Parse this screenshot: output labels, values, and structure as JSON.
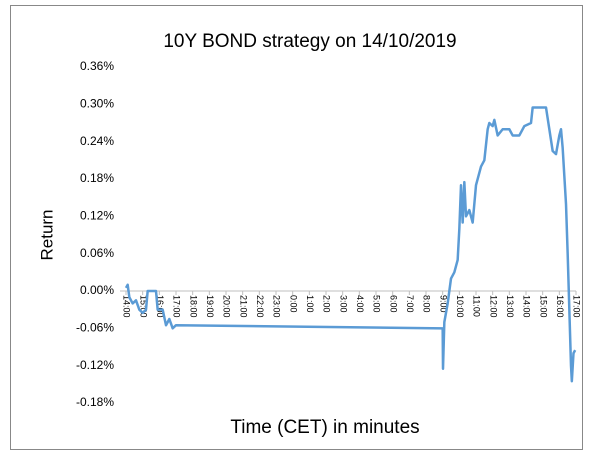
{
  "chart_data": {
    "type": "line",
    "title": "10Y BOND strategy on 14/10/2019",
    "y_label": "Return",
    "x_label": "Time (CET) in minutes",
    "x": [
      0,
      0.1,
      0.2,
      0.4,
      0.6,
      0.8,
      1.0,
      1.2,
      1.3,
      1.8,
      1.9,
      2.2,
      2.4,
      2.6,
      2.8,
      3.0,
      19.0,
      19.02,
      19.1,
      19.3,
      19.5,
      19.7,
      19.9,
      20.0,
      20.1,
      20.2,
      20.3,
      20.4,
      20.6,
      20.8,
      21.0,
      21.3,
      21.5,
      21.7,
      21.8,
      22.0,
      22.1,
      22.3,
      22.6,
      23.0,
      23.2,
      23.6,
      23.9,
      24.3,
      24.4,
      25.0,
      25.2,
      25.4,
      25.6,
      25.8,
      26.0,
      26.1,
      26.2,
      26.4,
      26.5,
      26.6,
      26.7,
      26.75,
      26.85,
      26.95
    ],
    "series": [
      {
        "name": "Return",
        "color": "#5b9bd5",
        "values": [
          0.005,
          0.01,
          -0.01,
          -0.02,
          -0.015,
          -0.03,
          -0.035,
          -0.03,
          0.0,
          0.0,
          -0.03,
          -0.03,
          -0.055,
          -0.045,
          -0.06,
          -0.055,
          -0.06,
          -0.125,
          -0.05,
          -0.02,
          0.02,
          0.03,
          0.05,
          0.1,
          0.17,
          0.11,
          0.175,
          0.12,
          0.13,
          0.11,
          0.17,
          0.2,
          0.21,
          0.26,
          0.27,
          0.265,
          0.275,
          0.25,
          0.26,
          0.26,
          0.25,
          0.25,
          0.265,
          0.27,
          0.295,
          0.295,
          0.295,
          0.26,
          0.225,
          0.22,
          0.25,
          0.26,
          0.23,
          0.14,
          0.06,
          -0.03,
          -0.12,
          -0.145,
          -0.1,
          -0.095
        ]
      }
    ],
    "xlim": [
      0,
      27
    ],
    "xticks": [
      {
        "value": 0,
        "label": "14:00"
      },
      {
        "value": 1,
        "label": "15:00"
      },
      {
        "value": 2,
        "label": "16:00"
      },
      {
        "value": 3,
        "label": "17:00"
      },
      {
        "value": 4,
        "label": "18:00"
      },
      {
        "value": 5,
        "label": "19:00"
      },
      {
        "value": 6,
        "label": "20:00"
      },
      {
        "value": 7,
        "label": "21:00"
      },
      {
        "value": 8,
        "label": "22:00"
      },
      {
        "value": 9,
        "label": "23:00"
      },
      {
        "value": 10,
        "label": "0:00"
      },
      {
        "value": 11,
        "label": "1:00"
      },
      {
        "value": 12,
        "label": "2:00"
      },
      {
        "value": 13,
        "label": "3:00"
      },
      {
        "value": 14,
        "label": "4:00"
      },
      {
        "value": 15,
        "label": "5:00"
      },
      {
        "value": 16,
        "label": "6:00"
      },
      {
        "value": 17,
        "label": "7:00"
      },
      {
        "value": 18,
        "label": "8:00"
      },
      {
        "value": 19,
        "label": "9:00"
      },
      {
        "value": 20,
        "label": "10:00"
      },
      {
        "value": 21,
        "label": "11:00"
      },
      {
        "value": 22,
        "label": "12:00"
      },
      {
        "value": 23,
        "label": "13:00"
      },
      {
        "value": 24,
        "label": "14:00"
      },
      {
        "value": 25,
        "label": "15:00"
      },
      {
        "value": 26,
        "label": "16:00"
      },
      {
        "value": 27,
        "label": "17:00"
      }
    ],
    "ylim": [
      -0.18,
      0.36
    ],
    "yticks": [
      {
        "value": -0.18,
        "label": "-0.18%"
      },
      {
        "value": -0.12,
        "label": "-0.12%"
      },
      {
        "value": -0.06,
        "label": "-0.06%"
      },
      {
        "value": 0,
        "label": "0.00%"
      },
      {
        "value": 0.06,
        "label": "0.06%"
      },
      {
        "value": 0.12,
        "label": "0.12%"
      },
      {
        "value": 0.18,
        "label": "0.18%"
      },
      {
        "value": 0.24,
        "label": "0.24%"
      },
      {
        "value": 0.3,
        "label": "0.30%"
      },
      {
        "value": 0.36,
        "label": "0.36%"
      }
    ],
    "grid": false
  }
}
